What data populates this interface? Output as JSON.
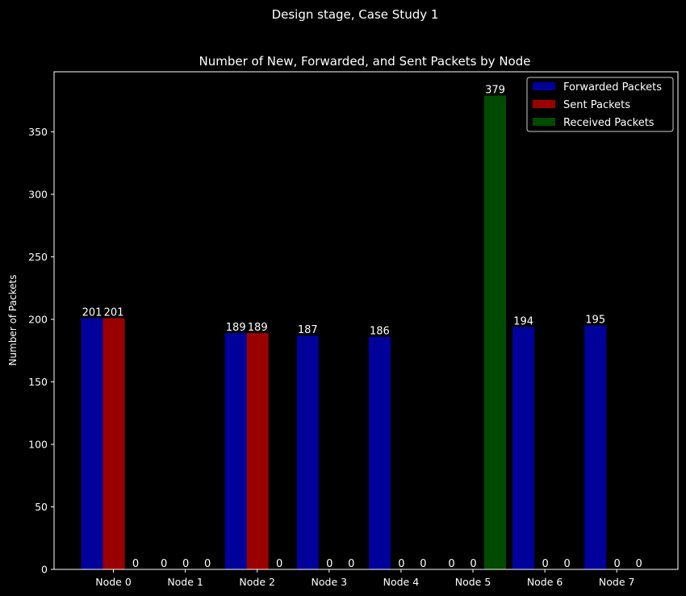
{
  "chart_data": {
    "type": "bar",
    "suptitle": "Design stage, Case Study 1",
    "title": "Number of New, Forwarded, and Sent Packets by Node",
    "xlabel": "",
    "ylabel": "Number of Packets",
    "categories": [
      "Node 0",
      "Node 1",
      "Node 2",
      "Node 3",
      "Node 4",
      "Node 5",
      "Node 6",
      "Node 7"
    ],
    "series": [
      {
        "name": "Forwarded Packets",
        "color": "#00009b",
        "values": [
          201,
          0,
          189,
          187,
          186,
          0,
          194,
          195
        ]
      },
      {
        "name": "Sent Packets",
        "color": "#9b0000",
        "values": [
          201,
          0,
          189,
          0,
          0,
          0,
          0,
          0
        ]
      },
      {
        "name": "Received Packets",
        "color": "#004b00",
        "values": [
          0,
          0,
          0,
          0,
          0,
          379,
          0,
          0
        ]
      }
    ],
    "ylim": [
      0,
      398
    ],
    "yticks": [
      0,
      50,
      100,
      150,
      200,
      250,
      300,
      350
    ],
    "grid": false,
    "legend_position": "top-right",
    "background": "#000000",
    "text_color": "#ffffff"
  }
}
